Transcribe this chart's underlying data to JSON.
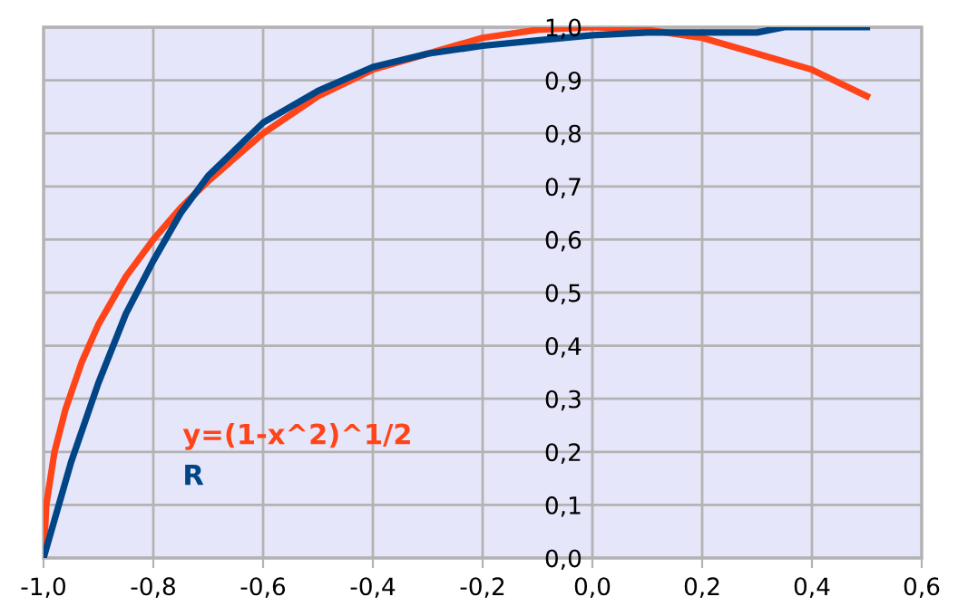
{
  "chart_data": {
    "type": "line",
    "series": [
      {
        "name": "y=(1-x^2)^1/2",
        "color": "#ff4419",
        "x": [
          -1,
          -0.995,
          -0.98,
          -0.96,
          -0.93,
          -0.9,
          -0.85,
          -0.8,
          -0.75,
          -0.7,
          -0.6,
          -0.5,
          -0.4,
          -0.3,
          -0.2,
          -0.1,
          0,
          0.1,
          0.2,
          0.3,
          0.4,
          0.5
        ],
        "values": [
          0,
          0.1,
          0.2,
          0.28,
          0.37,
          0.44,
          0.53,
          0.6,
          0.66,
          0.71,
          0.8,
          0.87,
          0.92,
          0.95,
          0.98,
          0.995,
          1.0,
          0.995,
          0.98,
          0.95,
          0.92,
          0.87
        ]
      },
      {
        "name": "R",
        "color": "#004586",
        "x": [
          -1,
          -0.95,
          -0.9,
          -0.85,
          -0.8,
          -0.75,
          -0.7,
          -0.6,
          -0.5,
          -0.4,
          -0.3,
          -0.2,
          -0.1,
          0,
          0.1,
          0.2,
          0.3,
          0.35,
          0.5
        ],
        "values": [
          0,
          0.18,
          0.33,
          0.46,
          0.56,
          0.65,
          0.72,
          0.82,
          0.88,
          0.925,
          0.95,
          0.965,
          0.975,
          0.985,
          0.99,
          0.99,
          0.99,
          1.0,
          1.0
        ]
      }
    ],
    "xlim": [
      -1,
      0.6
    ],
    "ylim": [
      0,
      1
    ],
    "xticks": [
      {
        "value": -1,
        "label": "-1,0"
      },
      {
        "value": -0.8,
        "label": "-0,8"
      },
      {
        "value": -0.6,
        "label": "-0,6"
      },
      {
        "value": -0.4,
        "label": "-0,4"
      },
      {
        "value": -0.2,
        "label": "-0,2"
      },
      {
        "value": 0,
        "label": "0,0"
      },
      {
        "value": 0.2,
        "label": "0,2"
      },
      {
        "value": 0.4,
        "label": "0,4"
      },
      {
        "value": 0.6,
        "label": "0,6"
      }
    ],
    "yticks": [
      {
        "value": 0,
        "label": "0,0"
      },
      {
        "value": 0.1,
        "label": "0,1"
      },
      {
        "value": 0.2,
        "label": "0,2"
      },
      {
        "value": 0.3,
        "label": "0,3"
      },
      {
        "value": 0.4,
        "label": "0,4"
      },
      {
        "value": 0.5,
        "label": "0,5"
      },
      {
        "value": 0.6,
        "label": "0,6"
      },
      {
        "value": 0.7,
        "label": "0,7"
      },
      {
        "value": 0.8,
        "label": "0,8"
      },
      {
        "value": 0.9,
        "label": "0,9"
      },
      {
        "value": 1.0,
        "label": "1,0"
      }
    ],
    "grid": true,
    "legend": "bottom left",
    "marker": "none",
    "line_style": "solid"
  }
}
